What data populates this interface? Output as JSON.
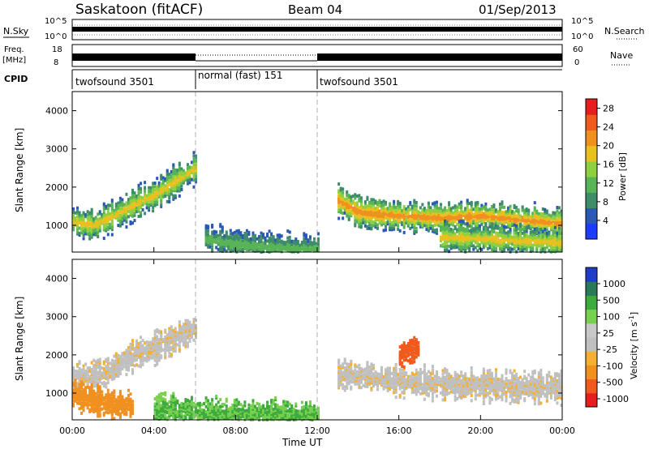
{
  "header": {
    "station": "Saskatoon (fitACF)",
    "beam": "Beam 04",
    "date": "01/Sep/2013"
  },
  "noise_panel": {
    "left_label": "N.Sky",
    "right_label": "N.Search",
    "tick_top": "10^5",
    "tick_bottom": "10^0"
  },
  "freq_panel": {
    "left_label_1": "Freq.",
    "left_label_2": "[MHz]",
    "right_label": "Nave",
    "left_ticks": [
      "18",
      "8"
    ],
    "right_ticks": [
      "60",
      "0"
    ]
  },
  "cpid": {
    "label": "CPID",
    "segments": [
      {
        "name": "twofsound 3501",
        "start_h": 0,
        "end_h": 6
      },
      {
        "name": "normal (fast) 151",
        "start_h": 6,
        "end_h": 12
      },
      {
        "name": "twofsound 3501",
        "start_h": 12,
        "end_h": 24
      }
    ]
  },
  "colors": {
    "power_scale": [
      "#1e3cff",
      "#2a58b4",
      "#3f8c6a",
      "#58b456",
      "#8fd040",
      "#e8c020",
      "#f09020",
      "#f05a1c",
      "#e61e1e"
    ],
    "velocity_scale": [
      "#e61e1e",
      "#f05a1c",
      "#f09020",
      "#f5b030",
      "#c0c0c0",
      "#c8c8c8",
      "#78d050",
      "#3caa3c",
      "#2a7a5a",
      "#1e3cc8"
    ]
  },
  "chart_data": [
    {
      "type": "heatmap",
      "panel": "power",
      "ylabel": "Slant Range [km]",
      "yticks": [
        "1000",
        "2000",
        "3000",
        "4000"
      ],
      "ylim": [
        300,
        4500
      ],
      "xlim": [
        0,
        24
      ],
      "colorbar_label": "Power [dB]",
      "colorbar_ticks": [
        "4",
        "8",
        "12",
        "16",
        "20",
        "24",
        "28"
      ],
      "colorbar_range": [
        0,
        30
      ],
      "echo_bands": [
        {
          "x": [
            0.0,
            1.0,
            2.0,
            3.0,
            4.0,
            5.0,
            6.0
          ],
          "y": [
            1100,
            1000,
            1250,
            1550,
            1800,
            2150,
            2500
          ],
          "level": 20
        },
        {
          "x": [
            6.5,
            8.0,
            10.0,
            12.0
          ],
          "y": [
            650,
            500,
            420,
            380
          ],
          "level": 12
        },
        {
          "x": [
            13.0,
            14.0,
            16.0,
            18.0,
            20.0,
            22.0,
            24.0
          ],
          "y": [
            1650,
            1350,
            1250,
            1200,
            1250,
            1150,
            1050
          ],
          "level": 24
        },
        {
          "x": [
            18.0,
            20.0,
            22.0,
            24.0
          ],
          "y": [
            700,
            650,
            600,
            550
          ],
          "level": 20
        }
      ]
    },
    {
      "type": "heatmap",
      "panel": "velocity",
      "ylabel": "Slant Range [km]",
      "yticks": [
        "1000",
        "2000",
        "3000",
        "4000"
      ],
      "ylim": [
        300,
        4500
      ],
      "xlim": [
        0,
        24
      ],
      "xticks": [
        "00:00",
        "04:00",
        "08:00",
        "12:00",
        "16:00",
        "20:00",
        "00:00"
      ],
      "xlabel": "Time UT",
      "colorbar_label": "Velocity [m s-1]",
      "colorbar_ticks": [
        "1000",
        "500",
        "100",
        "25",
        "-25",
        "-100",
        "-500",
        "-1000"
      ],
      "echo_bands": [
        {
          "x": [
            0.0,
            1.5,
            3.0,
            4.5,
            6.0
          ],
          "y": [
            1400,
            1500,
            2000,
            2300,
            2700
          ],
          "velocity": 0
        },
        {
          "x": [
            0.0,
            1.0,
            2.0,
            3.0
          ],
          "y": [
            1000,
            800,
            700,
            650
          ],
          "velocity": -120
        },
        {
          "x": [
            4.0,
            7.0,
            10.0,
            12.0
          ],
          "y": [
            600,
            450,
            400,
            380
          ],
          "velocity": 100
        },
        {
          "x": [
            13.0,
            16.0,
            20.0,
            24.0
          ],
          "y": [
            1500,
            1300,
            1200,
            1150
          ],
          "velocity": 0
        },
        {
          "x": [
            16.0,
            17.0
          ],
          "y": [
            2000,
            2200
          ],
          "velocity": -400
        }
      ]
    }
  ]
}
